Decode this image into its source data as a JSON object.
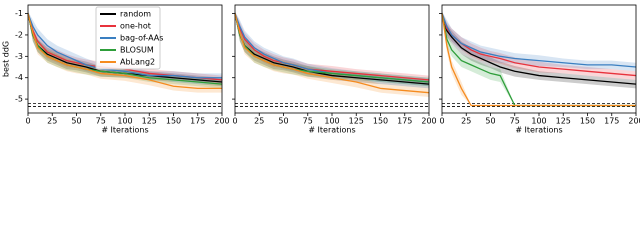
{
  "chart_data": [
    {
      "type": "line",
      "xlabel": "# Iterations",
      "ylabel": "best ddG",
      "xlim": [
        0,
        200
      ],
      "ylim": [
        -5.65,
        -0.6
      ],
      "xticks": [
        0,
        25,
        50,
        75,
        100,
        125,
        150,
        175,
        200
      ],
      "yticks": [
        -5,
        -4,
        -3,
        -2,
        -1
      ],
      "show_ytick_labels": true,
      "hlines": [
        -5.2,
        -5.35
      ],
      "legend": "upper center",
      "x": [
        0,
        5,
        10,
        20,
        30,
        40,
        50,
        60,
        75,
        100,
        125,
        150,
        175,
        200
      ],
      "series": [
        {
          "name": "random",
          "color": "#000000",
          "values": [
            -1,
            -2.0,
            -2.5,
            -2.9,
            -3.1,
            -3.3,
            -3.4,
            -3.5,
            -3.7,
            -3.8,
            -3.9,
            -4.0,
            -4.1,
            -4.2
          ],
          "err": [
            0.1,
            0.3,
            0.3,
            0.3,
            0.3,
            0.3,
            0.25,
            0.25,
            0.25,
            0.2,
            0.2,
            0.2,
            0.2,
            0.2
          ]
        },
        {
          "name": "one-hot",
          "color": "#e8323c",
          "values": [
            -1,
            -1.8,
            -2.3,
            -2.8,
            -3.0,
            -3.2,
            -3.3,
            -3.4,
            -3.5,
            -3.6,
            -3.8,
            -3.9,
            -4.0,
            -4.1
          ],
          "err": [
            0.1,
            0.3,
            0.3,
            0.3,
            0.3,
            0.3,
            0.25,
            0.25,
            0.25,
            0.25,
            0.2,
            0.2,
            0.2,
            0.2
          ]
        },
        {
          "name": "bag-of-AAs",
          "color": "#3a7fc1",
          "values": [
            -1,
            -1.6,
            -2.0,
            -2.5,
            -2.8,
            -3.0,
            -3.2,
            -3.4,
            -3.6,
            -3.7,
            -3.9,
            -3.9,
            -4.0,
            -4.0
          ],
          "err": [
            0.1,
            0.3,
            0.3,
            0.3,
            0.3,
            0.3,
            0.3,
            0.3,
            0.25,
            0.25,
            0.2,
            0.2,
            0.2,
            0.2
          ]
        },
        {
          "name": "BLOSUM",
          "color": "#2e9e3a",
          "values": [
            -1,
            -2.0,
            -2.5,
            -3.0,
            -3.2,
            -3.4,
            -3.5,
            -3.6,
            -3.7,
            -3.8,
            -4.0,
            -4.1,
            -4.2,
            -4.3
          ],
          "err": [
            0.1,
            0.3,
            0.3,
            0.3,
            0.3,
            0.25,
            0.25,
            0.25,
            0.25,
            0.2,
            0.2,
            0.2,
            0.2,
            0.2
          ]
        },
        {
          "name": "AbLang2",
          "color": "#f58b1f",
          "values": [
            -1,
            -1.9,
            -2.6,
            -3.0,
            -3.2,
            -3.4,
            -3.5,
            -3.6,
            -3.8,
            -3.9,
            -4.1,
            -4.4,
            -4.5,
            -4.5
          ],
          "err": [
            0.1,
            0.3,
            0.3,
            0.3,
            0.3,
            0.3,
            0.3,
            0.25,
            0.25,
            0.25,
            0.25,
            0.2,
            0.2,
            0.2
          ]
        }
      ]
    },
    {
      "type": "line",
      "xlabel": "# Iterations",
      "xlim": [
        0,
        200
      ],
      "ylim": [
        -5.65,
        -0.6
      ],
      "xticks": [
        0,
        25,
        50,
        75,
        100,
        125,
        150,
        175,
        200
      ],
      "yticks": [
        -5,
        -4,
        -3,
        -2,
        -1
      ],
      "show_ytick_labels": false,
      "hlines": [
        -5.2,
        -5.35
      ],
      "x": [
        0,
        5,
        10,
        20,
        30,
        40,
        50,
        60,
        75,
        100,
        125,
        150,
        175,
        200
      ],
      "series": [
        {
          "name": "random",
          "color": "#000000",
          "values": [
            -1,
            -2.0,
            -2.5,
            -2.9,
            -3.1,
            -3.3,
            -3.4,
            -3.5,
            -3.7,
            -3.9,
            -4.0,
            -4.1,
            -4.2,
            -4.3
          ],
          "err": [
            0.1,
            0.3,
            0.3,
            0.3,
            0.3,
            0.3,
            0.25,
            0.25,
            0.25,
            0.2,
            0.2,
            0.2,
            0.2,
            0.2
          ]
        },
        {
          "name": "one-hot",
          "color": "#e8323c",
          "values": [
            -1,
            -1.7,
            -2.2,
            -2.7,
            -3.0,
            -3.2,
            -3.3,
            -3.4,
            -3.6,
            -3.7,
            -3.8,
            -3.9,
            -4.0,
            -4.1
          ],
          "err": [
            0.1,
            0.3,
            0.3,
            0.3,
            0.3,
            0.3,
            0.25,
            0.25,
            0.25,
            0.25,
            0.2,
            0.2,
            0.2,
            0.2
          ]
        },
        {
          "name": "bag-of-AAs",
          "color": "#3a7fc1",
          "values": [
            -1,
            -1.6,
            -2.1,
            -2.6,
            -2.9,
            -3.1,
            -3.3,
            -3.4,
            -3.6,
            -3.8,
            -3.9,
            -4.0,
            -4.1,
            -4.2
          ],
          "err": [
            0.1,
            0.3,
            0.3,
            0.3,
            0.3,
            0.3,
            0.3,
            0.3,
            0.25,
            0.25,
            0.2,
            0.2,
            0.2,
            0.2
          ]
        },
        {
          "name": "BLOSUM",
          "color": "#2e9e3a",
          "values": [
            -1,
            -2.0,
            -2.5,
            -3.0,
            -3.2,
            -3.4,
            -3.5,
            -3.6,
            -3.7,
            -3.8,
            -3.9,
            -4.0,
            -4.1,
            -4.2
          ],
          "err": [
            0.1,
            0.3,
            0.3,
            0.3,
            0.3,
            0.25,
            0.25,
            0.25,
            0.25,
            0.2,
            0.2,
            0.2,
            0.2,
            0.2
          ]
        },
        {
          "name": "AbLang2",
          "color": "#f58b1f",
          "values": [
            -1,
            -1.9,
            -2.6,
            -3.0,
            -3.2,
            -3.4,
            -3.5,
            -3.6,
            -3.8,
            -4.0,
            -4.2,
            -4.5,
            -4.6,
            -4.7
          ],
          "err": [
            0.1,
            0.3,
            0.3,
            0.3,
            0.3,
            0.3,
            0.3,
            0.25,
            0.25,
            0.25,
            0.25,
            0.2,
            0.2,
            0.2
          ]
        }
      ]
    },
    {
      "type": "line",
      "xlabel": "# Iterations",
      "xlim": [
        0,
        200
      ],
      "ylim": [
        -5.65,
        -0.6
      ],
      "xticks": [
        0,
        25,
        50,
        75,
        100,
        125,
        150,
        175,
        200
      ],
      "yticks": [
        -5,
        -4,
        -3,
        -2,
        -1
      ],
      "show_ytick_labels": false,
      "hlines": [
        -5.2,
        -5.35
      ],
      "x": [
        0,
        5,
        10,
        20,
        30,
        40,
        50,
        60,
        75,
        100,
        125,
        150,
        175,
        200
      ],
      "series": [
        {
          "name": "random",
          "color": "#000000",
          "values": [
            -1,
            -1.8,
            -2.1,
            -2.6,
            -2.9,
            -3.1,
            -3.3,
            -3.5,
            -3.7,
            -3.9,
            -4.0,
            -4.1,
            -4.2,
            -4.3
          ],
          "err": [
            0.1,
            0.3,
            0.3,
            0.3,
            0.3,
            0.3,
            0.25,
            0.25,
            0.25,
            0.2,
            0.2,
            0.2,
            0.2,
            0.2
          ]
        },
        {
          "name": "one-hot",
          "color": "#e8323c",
          "values": [
            -1,
            -1.7,
            -2.0,
            -2.4,
            -2.7,
            -2.9,
            -3.0,
            -3.1,
            -3.3,
            -3.5,
            -3.6,
            -3.7,
            -3.8,
            -3.9
          ],
          "err": [
            0.1,
            0.3,
            0.3,
            0.3,
            0.3,
            0.3,
            0.25,
            0.25,
            0.25,
            0.25,
            0.2,
            0.2,
            0.2,
            0.2
          ]
        },
        {
          "name": "bag-of-AAs",
          "color": "#3a7fc1",
          "values": [
            -1,
            -1.6,
            -2.0,
            -2.4,
            -2.6,
            -2.8,
            -2.9,
            -3.0,
            -3.1,
            -3.2,
            -3.3,
            -3.4,
            -3.4,
            -3.5
          ],
          "err": [
            0.1,
            0.3,
            0.3,
            0.3,
            0.3,
            0.3,
            0.3,
            0.3,
            0.25,
            0.25,
            0.2,
            0.2,
            0.2,
            0.2
          ]
        },
        {
          "name": "BLOSUM",
          "color": "#2e9e3a",
          "values": [
            -1,
            -2.2,
            -2.7,
            -3.2,
            -3.4,
            -3.6,
            -3.8,
            -3.9,
            -5.3,
            -5.3,
            -5.3,
            -5.3,
            -5.3,
            -5.3
          ],
          "err": [
            0.1,
            0.3,
            0.3,
            0.3,
            0.3,
            0.3,
            0.3,
            0.3,
            0,
            0,
            0,
            0,
            0,
            0
          ]
        },
        {
          "name": "AbLang2",
          "color": "#f58b1f",
          "values": [
            -1,
            -2.5,
            -3.5,
            -4.5,
            -5.3,
            -5.3,
            -5.3,
            -5.3,
            -5.3,
            -5.3,
            -5.3,
            -5.3,
            -5.3,
            -5.3
          ],
          "err": [
            0.1,
            0.3,
            0.3,
            0.3,
            0,
            0,
            0,
            0,
            0,
            0,
            0,
            0,
            0,
            0
          ]
        }
      ]
    }
  ]
}
